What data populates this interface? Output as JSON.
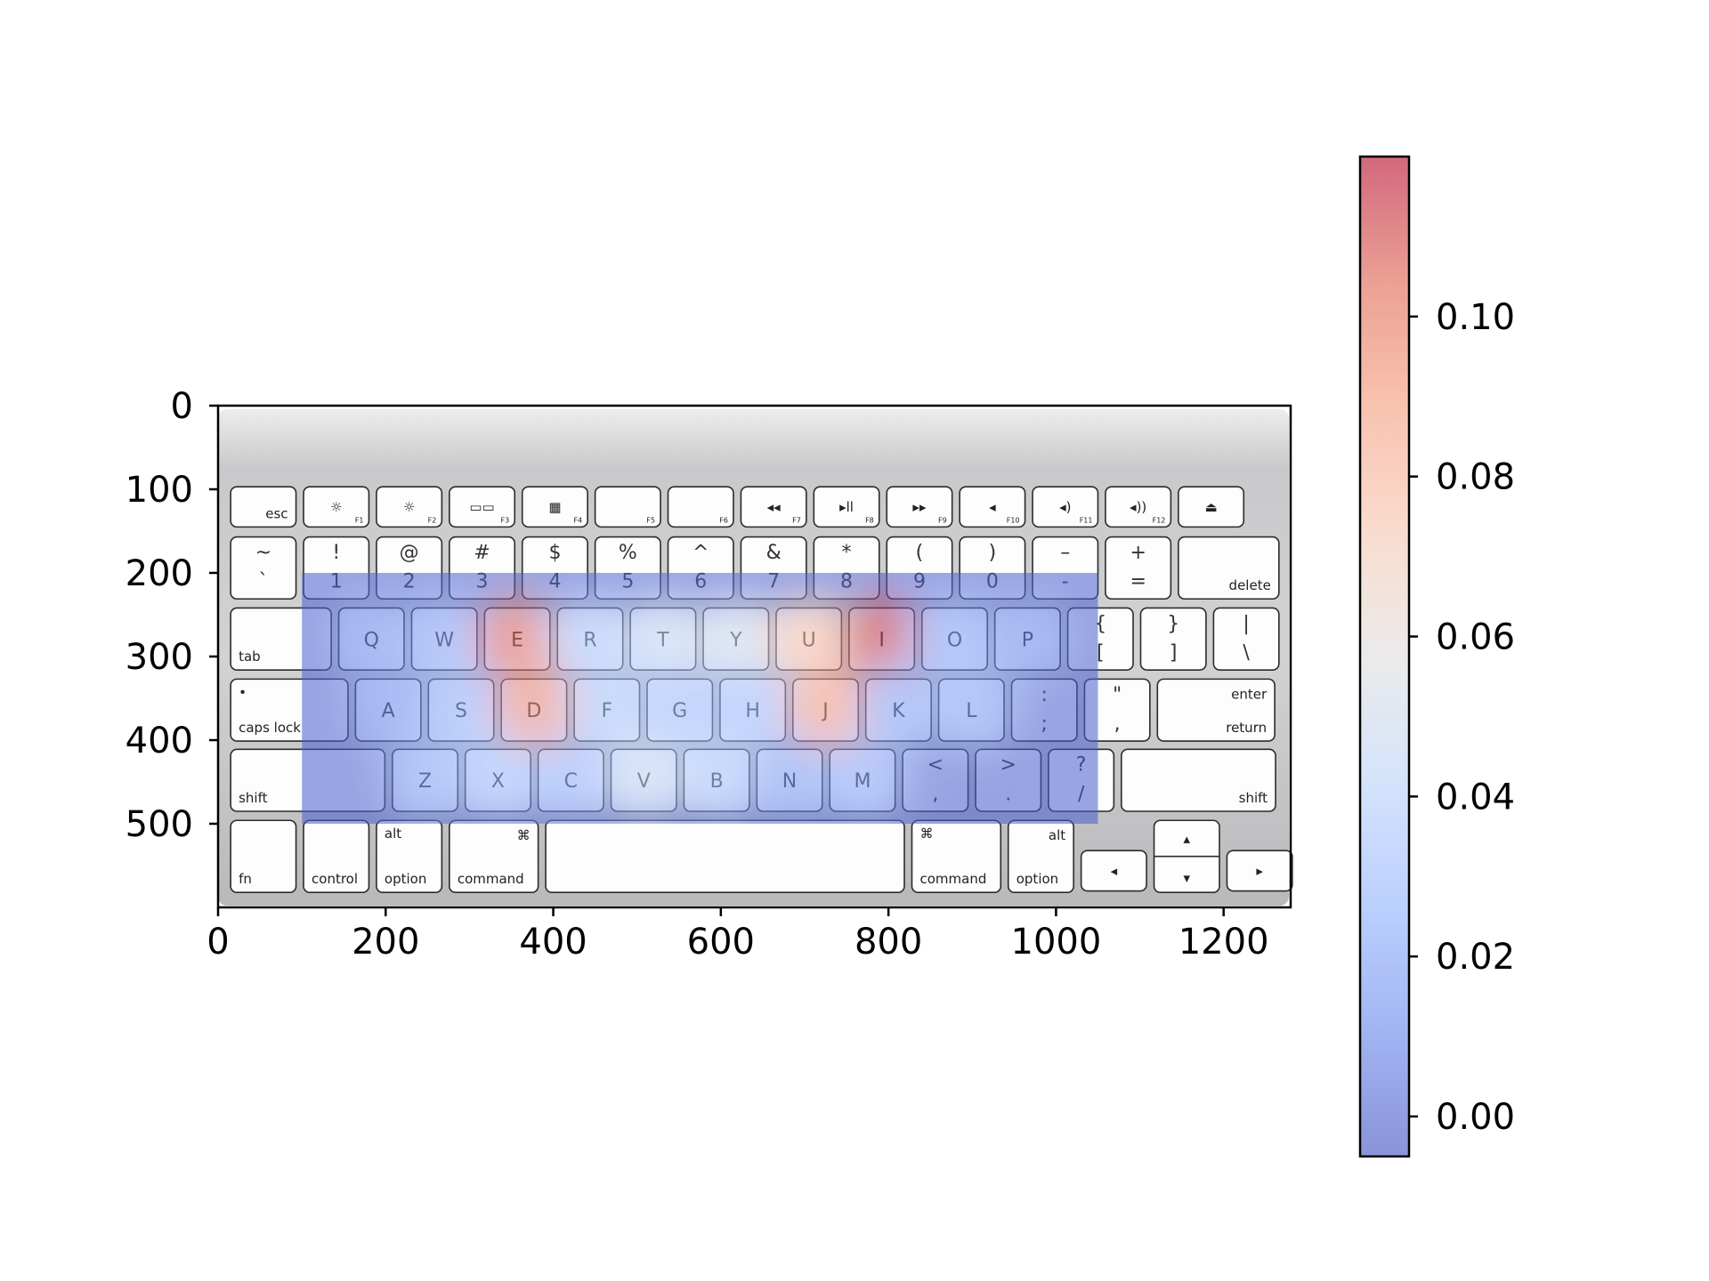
{
  "chart_data": {
    "type": "heatmap",
    "title": "",
    "xlabel": "",
    "ylabel": "",
    "background": "keyboard-photo",
    "xlim": [
      0,
      1280
    ],
    "ylim": [
      600,
      0
    ],
    "x_ticks": [
      "0",
      "200",
      "400",
      "600",
      "800",
      "1000",
      "1200"
    ],
    "y_ticks": [
      "0",
      "100",
      "200",
      "300",
      "400",
      "500"
    ],
    "heatmap_extent": {
      "x": [
        100,
        1050
      ],
      "y": [
        200,
        500
      ]
    },
    "colormap": "coolwarm",
    "colormap_alpha": 0.55,
    "colorbar": {
      "range": [
        -0.005,
        0.12
      ],
      "ticks": [
        "0.00",
        "0.02",
        "0.04",
        "0.06",
        "0.08",
        "0.10"
      ],
      "placement": "right"
    },
    "keys": [
      {
        "label": "Q",
        "x": 183,
        "y": 278,
        "value": 0.012
      },
      {
        "label": "W",
        "x": 270,
        "y": 278,
        "value": 0.02
      },
      {
        "label": "E",
        "x": 357,
        "y": 278,
        "value": 0.105
      },
      {
        "label": "R",
        "x": 444,
        "y": 278,
        "value": 0.035
      },
      {
        "label": "T",
        "x": 531,
        "y": 278,
        "value": 0.045
      },
      {
        "label": "Y",
        "x": 618,
        "y": 278,
        "value": 0.05
      },
      {
        "label": "U",
        "x": 705,
        "y": 278,
        "value": 0.075
      },
      {
        "label": "I",
        "x": 792,
        "y": 278,
        "value": 0.115
      },
      {
        "label": "O",
        "x": 879,
        "y": 278,
        "value": 0.02
      },
      {
        "label": "P",
        "x": 966,
        "y": 278,
        "value": 0.012
      },
      {
        "label": "A",
        "x": 206,
        "y": 362,
        "value": 0.012
      },
      {
        "label": "S",
        "x": 293,
        "y": 362,
        "value": 0.025
      },
      {
        "label": "D",
        "x": 380,
        "y": 362,
        "value": 0.095
      },
      {
        "label": "F",
        "x": 467,
        "y": 362,
        "value": 0.035
      },
      {
        "label": "G",
        "x": 554,
        "y": 362,
        "value": 0.03
      },
      {
        "label": "H",
        "x": 641,
        "y": 362,
        "value": 0.03
      },
      {
        "label": "J",
        "x": 728,
        "y": 362,
        "value": 0.09
      },
      {
        "label": "K",
        "x": 815,
        "y": 362,
        "value": 0.02
      },
      {
        "label": "L",
        "x": 902,
        "y": 362,
        "value": 0.02
      },
      {
        "label": "Z",
        "x": 250,
        "y": 446,
        "value": 0.02
      },
      {
        "label": "X",
        "x": 337,
        "y": 446,
        "value": 0.03
      },
      {
        "label": "C",
        "x": 424,
        "y": 446,
        "value": 0.025
      },
      {
        "label": "V",
        "x": 511,
        "y": 446,
        "value": 0.045
      },
      {
        "label": "B",
        "x": 598,
        "y": 446,
        "value": 0.035
      },
      {
        "label": "N",
        "x": 685,
        "y": 446,
        "value": 0.018
      },
      {
        "label": "M",
        "x": 772,
        "y": 446,
        "value": 0.022
      }
    ]
  },
  "keyboard": {
    "rows": [
      [
        {
          "w": 78,
          "br": "esc"
        },
        {
          "w": 78,
          "c": "☼",
          "sub": "F1"
        },
        {
          "w": 78,
          "c": "☼",
          "sub": "F2"
        },
        {
          "w": 78,
          "c": "▭▭",
          "sub": "F3"
        },
        {
          "w": 78,
          "c": "▦",
          "sub": "F4"
        },
        {
          "w": 78,
          "sub": "F5"
        },
        {
          "w": 78,
          "sub": "F6"
        },
        {
          "w": 78,
          "c": "◂◂",
          "sub": "F7"
        },
        {
          "w": 78,
          "c": "▸ll",
          "sub": "F8"
        },
        {
          "w": 78,
          "c": "▸▸",
          "sub": "F9"
        },
        {
          "w": 78,
          "c": "◂",
          "sub": "F10"
        },
        {
          "w": 78,
          "c": "◂)",
          "sub": "F11"
        },
        {
          "w": 78,
          "c": "◂))",
          "sub": "F12"
        },
        {
          "w": 78,
          "c": "⏏"
        }
      ],
      [
        {
          "w": 78,
          "t": "~",
          "b": "`"
        },
        {
          "w": 78,
          "t": "!",
          "b": "1"
        },
        {
          "w": 78,
          "t": "@",
          "b": "2"
        },
        {
          "w": 78,
          "t": "#",
          "b": "3"
        },
        {
          "w": 78,
          "t": "$",
          "b": "4"
        },
        {
          "w": 78,
          "t": "%",
          "b": "5"
        },
        {
          "w": 78,
          "t": "^",
          "b": "6"
        },
        {
          "w": 78,
          "t": "&",
          "b": "7"
        },
        {
          "w": 78,
          "t": "*",
          "b": "8"
        },
        {
          "w": 78,
          "t": "(",
          "b": "9"
        },
        {
          "w": 78,
          "t": ")",
          "b": "0"
        },
        {
          "w": 78,
          "t": "–",
          "b": "-"
        },
        {
          "w": 78,
          "t": "+",
          "b": "="
        },
        {
          "w": 120,
          "br": "delete"
        }
      ],
      [
        {
          "w": 120,
          "bl": "tab"
        },
        {
          "w": 78,
          "c": "Q"
        },
        {
          "w": 78,
          "c": "W"
        },
        {
          "w": 78,
          "c": "E"
        },
        {
          "w": 78,
          "c": "R"
        },
        {
          "w": 78,
          "c": "T"
        },
        {
          "w": 78,
          "c": "Y"
        },
        {
          "w": 78,
          "c": "U"
        },
        {
          "w": 78,
          "c": "I"
        },
        {
          "w": 78,
          "c": "O"
        },
        {
          "w": 78,
          "c": "P"
        },
        {
          "w": 78,
          "t": "{",
          "b": "["
        },
        {
          "w": 78,
          "t": "}",
          "b": "]"
        },
        {
          "w": 78,
          "t": "|",
          "b": "\\"
        }
      ],
      [
        {
          "w": 140,
          "tl": "•",
          "bl": "caps lock"
        },
        {
          "w": 78,
          "c": "A"
        },
        {
          "w": 78,
          "c": "S"
        },
        {
          "w": 78,
          "c": "D"
        },
        {
          "w": 78,
          "c": "F"
        },
        {
          "w": 78,
          "c": "G"
        },
        {
          "w": 78,
          "c": "H"
        },
        {
          "w": 78,
          "c": "J"
        },
        {
          "w": 78,
          "c": "K"
        },
        {
          "w": 78,
          "c": "L"
        },
        {
          "w": 78,
          "t": ":",
          "b": ";"
        },
        {
          "w": 78,
          "t": "\"",
          "b": ","
        },
        {
          "w": 140,
          "tr": "enter",
          "br": "return"
        }
      ],
      [
        {
          "w": 184,
          "bl": "shift"
        },
        {
          "w": 78,
          "c": "Z"
        },
        {
          "w": 78,
          "c": "X"
        },
        {
          "w": 78,
          "c": "C"
        },
        {
          "w": 78,
          "c": "V"
        },
        {
          "w": 78,
          "c": "B"
        },
        {
          "w": 78,
          "c": "N"
        },
        {
          "w": 78,
          "c": "M"
        },
        {
          "w": 78,
          "t": "<",
          "b": ","
        },
        {
          "w": 78,
          "t": ">",
          "b": "."
        },
        {
          "w": 78,
          "t": "?",
          "b": "/"
        },
        {
          "w": 184,
          "br": "shift"
        }
      ],
      [
        {
          "w": 78,
          "bl": "fn"
        },
        {
          "w": 78,
          "bl": "control"
        },
        {
          "w": 78,
          "tl": "alt",
          "bl": "option"
        },
        {
          "w": 106,
          "tr": "⌘",
          "bl": "command"
        },
        {
          "w": 428
        },
        {
          "w": 106,
          "tl": "⌘",
          "bl": "command"
        },
        {
          "w": 78,
          "tr": "alt",
          "bl": "option"
        },
        {
          "w": 78,
          "c": "◂",
          "arrow": "low"
        },
        {
          "w": 78,
          "c": "▴▾",
          "arrow": "split"
        },
        {
          "w": 78,
          "c": "▸",
          "arrow": "low"
        }
      ]
    ]
  }
}
